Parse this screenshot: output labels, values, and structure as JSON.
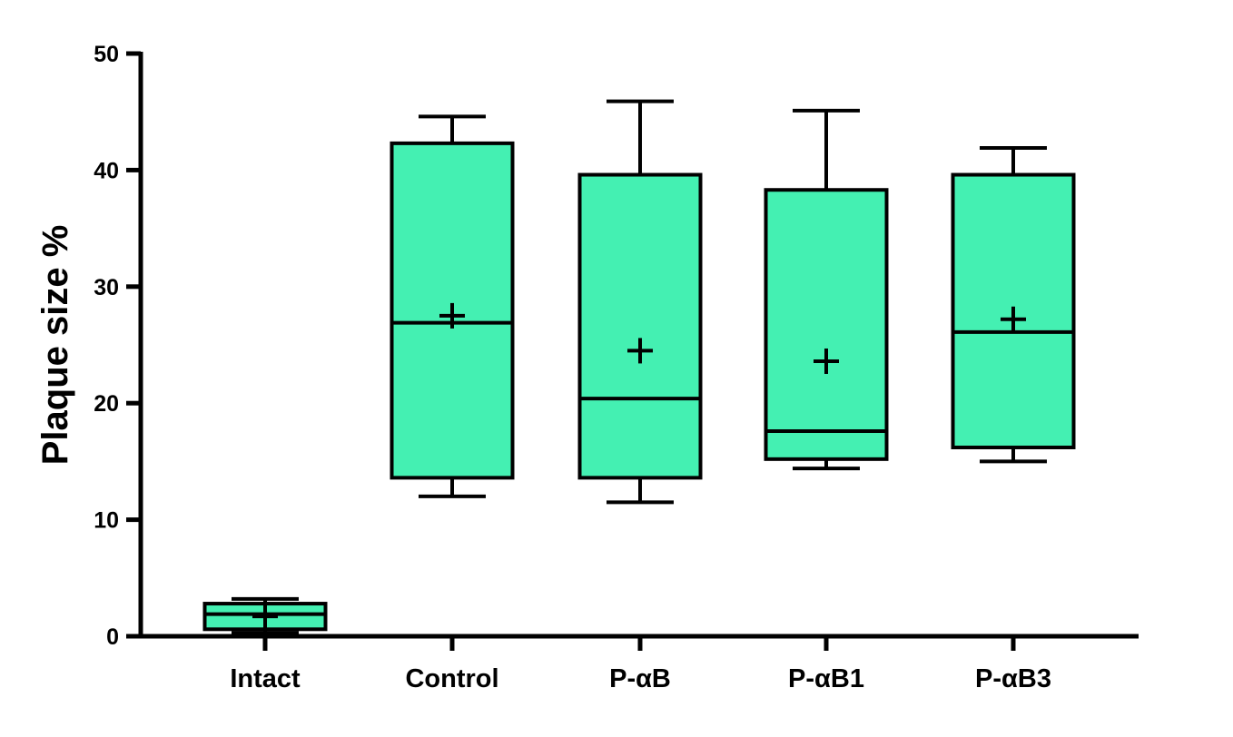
{
  "chart_data": {
    "type": "box",
    "title": "",
    "xlabel": "",
    "ylabel": "Plaque size %",
    "ylim": [
      0,
      50
    ],
    "yticks": [
      0,
      10,
      20,
      30,
      40,
      50
    ],
    "ytick_labels": [
      "0",
      "10",
      "20",
      "30",
      "40",
      "50"
    ],
    "categories": [
      "Intact",
      "Control",
      "P-αB",
      "P-αB1",
      "P-αB3"
    ],
    "grid": false,
    "legend": "none",
    "box_fill_color": "#44F0B2",
    "stroke_color": "#000000",
    "series": [
      {
        "category": "Intact",
        "min": 0.3,
        "q1": 0.6,
        "median": 1.9,
        "q3": 2.8,
        "max": 3.2,
        "mean": 1.7
      },
      {
        "category": "Control",
        "min": 12.0,
        "q1": 13.6,
        "median": 26.9,
        "q3": 42.3,
        "max": 44.6,
        "mean": 27.5
      },
      {
        "category": "P-αB",
        "min": 11.5,
        "q1": 13.6,
        "median": 20.4,
        "q3": 39.6,
        "max": 45.9,
        "mean": 24.5
      },
      {
        "category": "P-αB1",
        "min": 14.4,
        "q1": 15.2,
        "median": 17.6,
        "q3": 38.3,
        "max": 45.1,
        "mean": 23.6
      },
      {
        "category": "P-αB3",
        "min": 15.0,
        "q1": 16.2,
        "median": 26.1,
        "q3": 39.6,
        "max": 41.9,
        "mean": 27.2
      }
    ]
  }
}
